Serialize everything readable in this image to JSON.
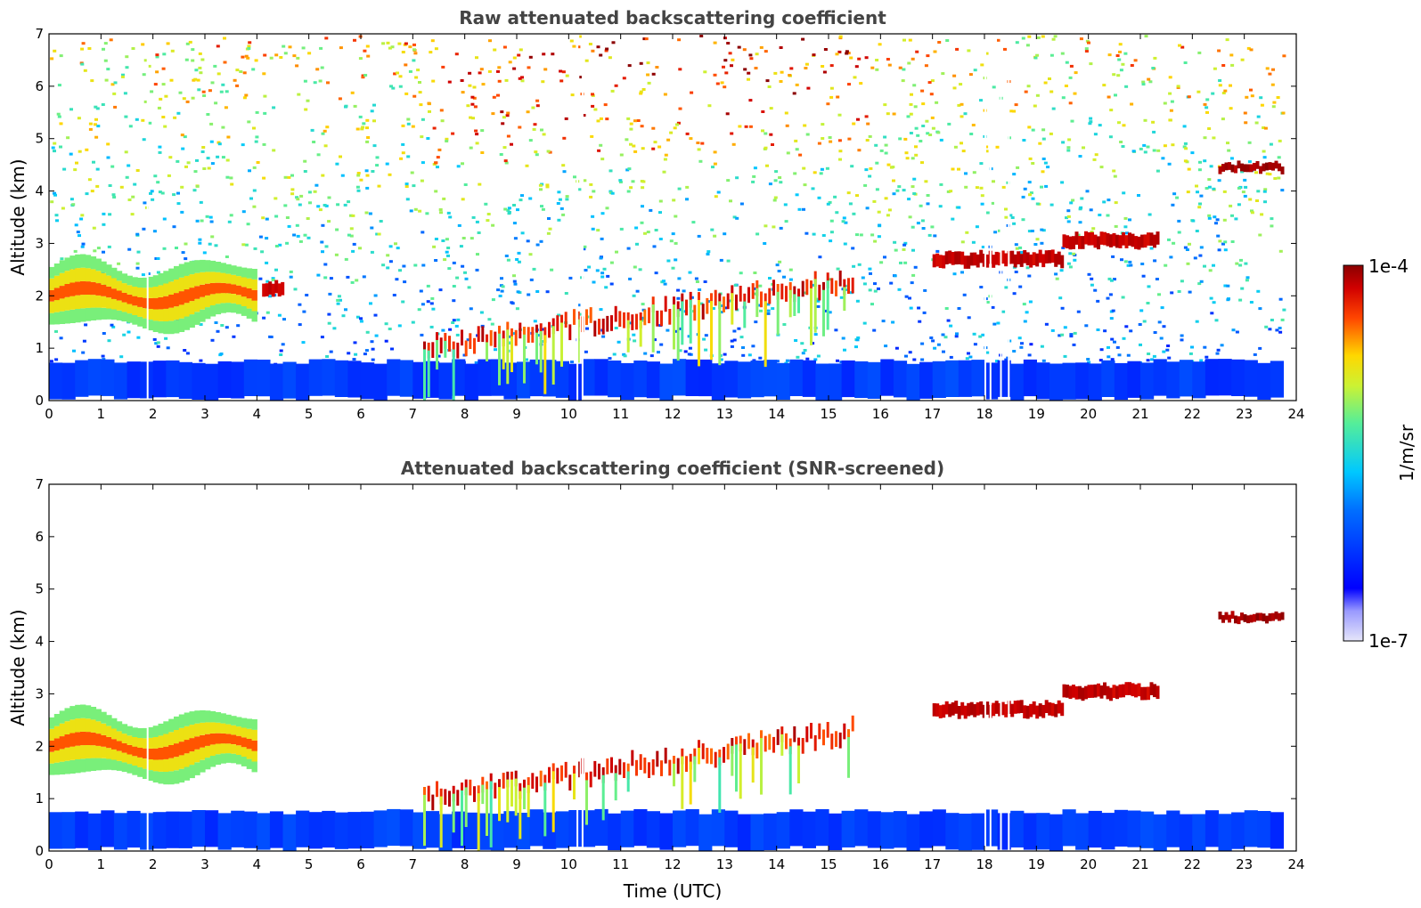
{
  "chart_data": [
    {
      "type": "heatmap",
      "title": "Raw attenuated backscattering coefficient",
      "xlabel": "",
      "ylabel": "Altitude (km)",
      "xlim": [
        0,
        24
      ],
      "ylim": [
        0,
        7
      ],
      "xticks": [
        "0",
        "1",
        "2",
        "3",
        "4",
        "5",
        "6",
        "7",
        "8",
        "9",
        "10",
        "11",
        "12",
        "13",
        "14",
        "15",
        "16",
        "17",
        "18",
        "19",
        "20",
        "21",
        "22",
        "23",
        "24"
      ],
      "yticks": [
        "0",
        "1",
        "2",
        "3",
        "4",
        "5",
        "6",
        "7"
      ],
      "features": [
        {
          "name": "boundary-layer",
          "t_start": 0,
          "t_end": 23.75,
          "alt_top": 0.7,
          "level": 0.25
        },
        {
          "name": "aerosol-layer",
          "t_start": 0,
          "t_end": 4,
          "alt_center": 2.0,
          "level": 0.7
        },
        {
          "name": "elevated-layer",
          "t_start": 4.1,
          "t_end": 4.5,
          "alt_center": 2.15,
          "level": 0.95
        },
        {
          "name": "rising-cloud-base",
          "t_start": 7.2,
          "t_end": 15.5,
          "alt_start": 1.0,
          "alt_end": 2.3,
          "level": 0.9
        },
        {
          "name": "cloud-layer",
          "t_start": 17.0,
          "t_end": 19.5,
          "alt_center": 2.7,
          "level": 0.95
        },
        {
          "name": "cloud-layer",
          "t_start": 19.5,
          "t_end": 21.3,
          "alt_center": 3.05,
          "level": 0.95
        },
        {
          "name": "high-cloud",
          "t_start": 22.5,
          "t_end": 23.7,
          "alt_center": 4.45,
          "level": 0.98
        }
      ]
    },
    {
      "type": "heatmap",
      "title": "Attenuated backscattering coefficient (SNR-screened)",
      "xlabel": "Time (UTC)",
      "ylabel": "Altitude (km)",
      "xlim": [
        0,
        24
      ],
      "ylim": [
        0,
        7
      ],
      "xticks": [
        "0",
        "1",
        "2",
        "3",
        "4",
        "5",
        "6",
        "7",
        "8",
        "9",
        "10",
        "11",
        "12",
        "13",
        "14",
        "15",
        "16",
        "17",
        "18",
        "19",
        "20",
        "21",
        "22",
        "23",
        "24"
      ],
      "yticks": [
        "0",
        "1",
        "2",
        "3",
        "4",
        "5",
        "6",
        "7"
      ],
      "features": [
        {
          "name": "boundary-layer",
          "t_start": 0,
          "t_end": 23.75,
          "alt_top": 0.7,
          "level": 0.25
        },
        {
          "name": "aerosol-layer",
          "t_start": 0,
          "t_end": 4,
          "alt_center": 2.0,
          "level": 0.7
        },
        {
          "name": "rising-cloud-base",
          "t_start": 7.2,
          "t_end": 15.5,
          "alt_start": 1.0,
          "alt_end": 2.3,
          "level": 0.9
        },
        {
          "name": "cloud-layer",
          "t_start": 17.0,
          "t_end": 19.5,
          "alt_center": 2.7,
          "level": 0.95
        },
        {
          "name": "cloud-layer",
          "t_start": 19.5,
          "t_end": 21.3,
          "alt_center": 3.05,
          "level": 0.95
        },
        {
          "name": "high-cloud",
          "t_start": 22.5,
          "t_end": 23.7,
          "alt_center": 4.45,
          "level": 0.98
        }
      ]
    }
  ],
  "colorbar": {
    "label": "1/m/sr",
    "max_label": "1e-4",
    "min_label": "1e-7",
    "colormap": [
      "#e6e6fa",
      "#0000ff",
      "#00c8ff",
      "#aaff55",
      "#ffd700",
      "#ff4500",
      "#8b0000"
    ]
  }
}
